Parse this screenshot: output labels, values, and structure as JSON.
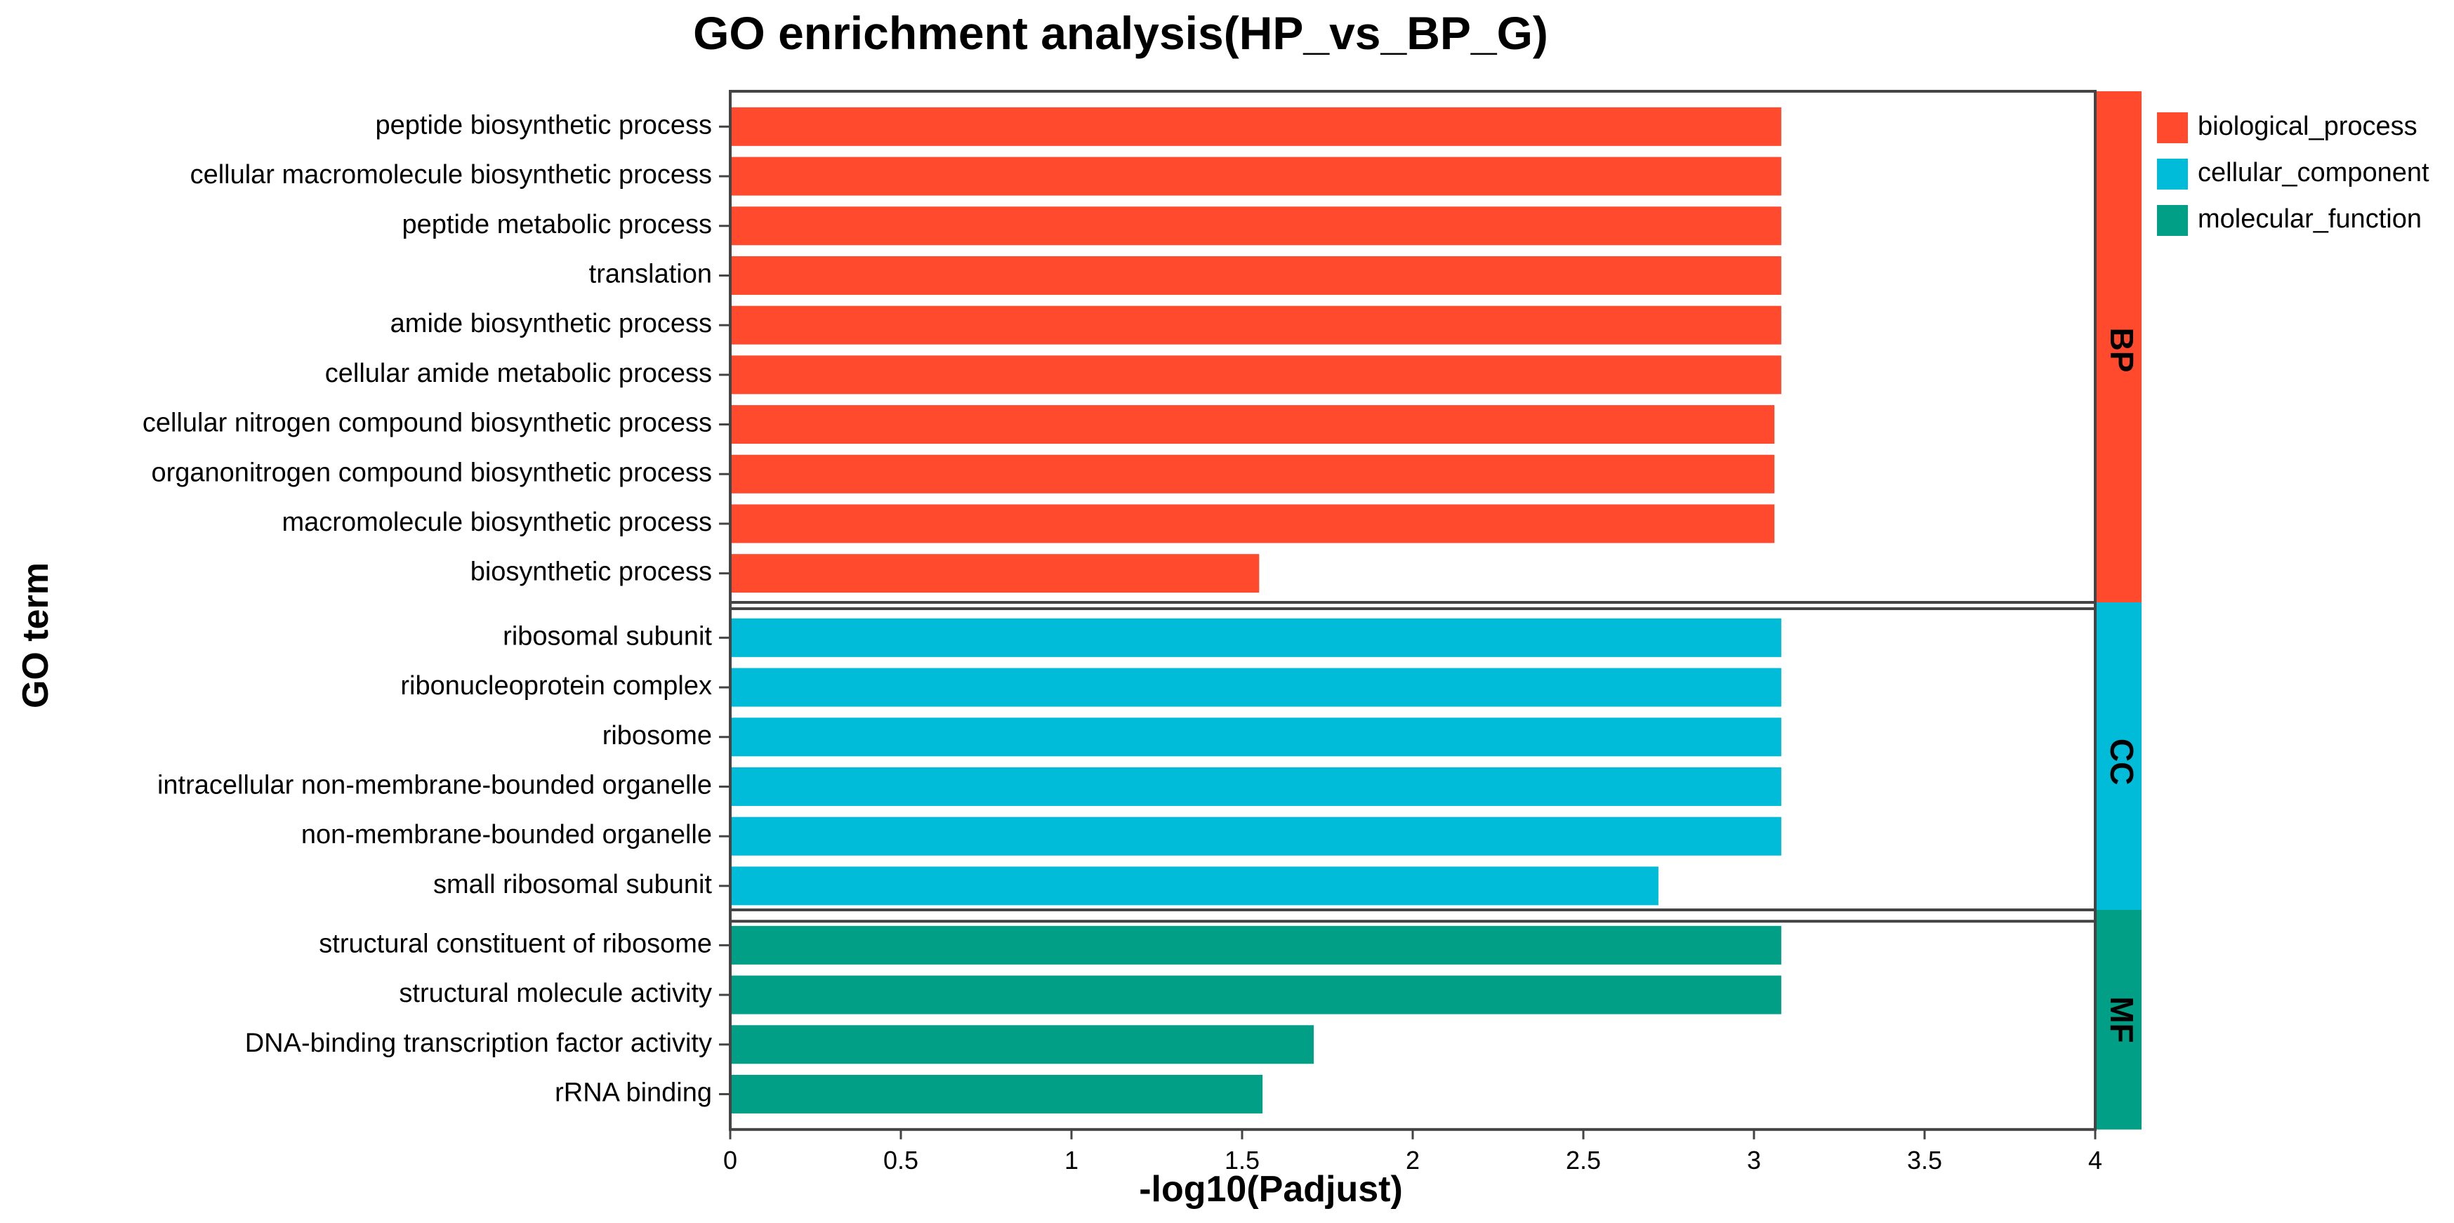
{
  "chart_data": {
    "type": "bar",
    "orientation": "horizontal",
    "title": "GO enrichment analysis(HP_vs_BP_G)",
    "xlabel": "-log10(Padjust)",
    "ylabel": "GO term",
    "xlim": [
      0,
      4
    ],
    "xticks": [
      0,
      0.5,
      1,
      1.5,
      2,
      2.5,
      3,
      3.5,
      4
    ],
    "xtick_labels": [
      "0",
      "0.5",
      "1",
      "1.5",
      "2",
      "2.5",
      "3",
      "3.5",
      "4"
    ],
    "grid": false,
    "legend": {
      "position": "top-right",
      "entries": [
        {
          "name": "biological_process",
          "color": "#ff4a2e"
        },
        {
          "name": "cellular_component",
          "color": "#00bcd8"
        },
        {
          "name": "molecular_function",
          "color": "#009f86"
        }
      ]
    },
    "groups": [
      {
        "label": "BP",
        "category": "biological_process",
        "color": "#ff4a2e",
        "terms": [
          {
            "name": "peptide biosynthetic process",
            "value": 3.08
          },
          {
            "name": "cellular macromolecule biosynthetic process",
            "value": 3.08
          },
          {
            "name": "peptide metabolic process",
            "value": 3.08
          },
          {
            "name": "translation",
            "value": 3.08
          },
          {
            "name": "amide biosynthetic process",
            "value": 3.08
          },
          {
            "name": "cellular amide metabolic process",
            "value": 3.08
          },
          {
            "name": "cellular nitrogen compound biosynthetic process",
            "value": 3.06
          },
          {
            "name": "organonitrogen compound biosynthetic process",
            "value": 3.06
          },
          {
            "name": "macromolecule biosynthetic process",
            "value": 3.06
          },
          {
            "name": "biosynthetic process",
            "value": 1.55
          }
        ]
      },
      {
        "label": "CC",
        "category": "cellular_component",
        "color": "#00bcd8",
        "terms": [
          {
            "name": "ribosomal subunit",
            "value": 3.08
          },
          {
            "name": "ribonucleoprotein complex",
            "value": 3.08
          },
          {
            "name": "ribosome",
            "value": 3.08
          },
          {
            "name": "intracellular non-membrane-bounded organelle",
            "value": 3.08
          },
          {
            "name": "non-membrane-bounded organelle",
            "value": 3.08
          },
          {
            "name": "small ribosomal subunit",
            "value": 2.72
          }
        ]
      },
      {
        "label": "MF",
        "category": "molecular_function",
        "color": "#009f86",
        "terms": [
          {
            "name": "structural constituent of ribosome",
            "value": 3.08
          },
          {
            "name": "structural molecule activity",
            "value": 3.08
          },
          {
            "name": "DNA-binding transcription factor activity",
            "value": 1.71
          },
          {
            "name": "rRNA binding",
            "value": 1.56
          }
        ]
      }
    ]
  }
}
